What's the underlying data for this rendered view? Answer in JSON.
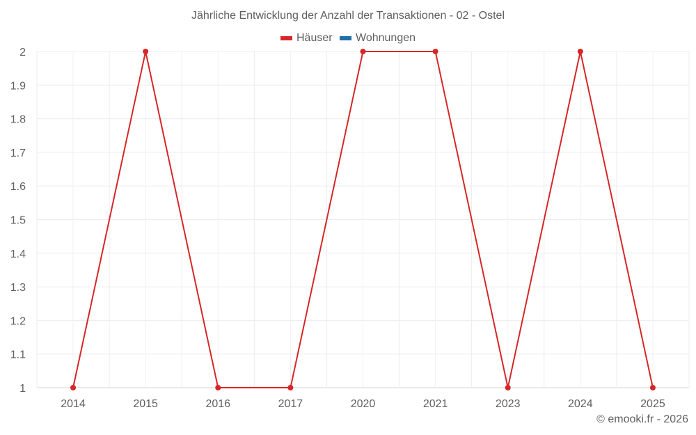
{
  "chart_data": {
    "type": "line",
    "title": "Jährliche Entwicklung der Anzahl der Transaktionen - 02 - Ostel",
    "categories": [
      "2014",
      "2015",
      "2016",
      "2017",
      "2020",
      "2021",
      "2023",
      "2024",
      "2025"
    ],
    "series": [
      {
        "name": "Häuser",
        "color": "#d62728",
        "values": [
          1,
          2,
          1,
          1,
          2,
          2,
          1,
          2,
          1
        ]
      },
      {
        "name": "Wohnungen",
        "color": "#1f6fa8",
        "values": []
      }
    ],
    "xlabel": "",
    "ylabel": "",
    "ylim": [
      1,
      2
    ],
    "yticks": [
      "1",
      "1.1",
      "1.2",
      "1.3",
      "1.4",
      "1.5",
      "1.6",
      "1.7",
      "1.8",
      "1.9",
      "2"
    ],
    "grid": true,
    "legend_position": "top"
  },
  "legend": [
    {
      "label": "Häuser",
      "color": "#d62728"
    },
    {
      "label": "Wohnungen",
      "color": "#1f6fa8"
    }
  ],
  "credit": "© emooki.fr - 2026"
}
